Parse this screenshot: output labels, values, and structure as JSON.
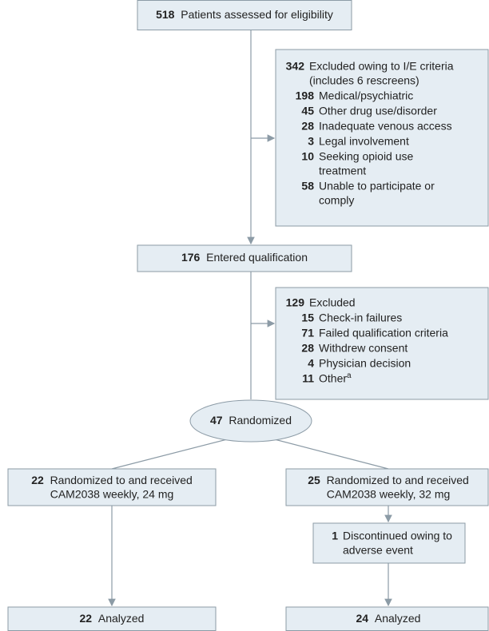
{
  "screening": {
    "count": 518,
    "label": "Patients assessed for eligibility"
  },
  "excluded_ie": {
    "count": 342,
    "label": "Excluded owing to I/E criteria",
    "note": "(includes 6 rescreens)",
    "reasons": [
      {
        "count": 198,
        "lines": [
          "Medical/psychiatric"
        ]
      },
      {
        "count": 45,
        "lines": [
          "Other drug use/disorder"
        ]
      },
      {
        "count": 28,
        "lines": [
          "Inadequate venous access"
        ]
      },
      {
        "count": 3,
        "lines": [
          "Legal involvement"
        ]
      },
      {
        "count": 10,
        "lines": [
          "Seeking opioid use",
          "treatment"
        ]
      },
      {
        "count": 58,
        "lines": [
          "Unable to participate or",
          "comply"
        ]
      }
    ]
  },
  "qualification": {
    "count": 176,
    "label": "Entered qualification"
  },
  "excluded_qual": {
    "count": 129,
    "label": "Excluded",
    "reasons": [
      {
        "count": 15,
        "lines": [
          "Check-in failures"
        ]
      },
      {
        "count": 71,
        "lines": [
          "Failed qualification criteria"
        ]
      },
      {
        "count": 28,
        "lines": [
          "Withdrew consent"
        ]
      },
      {
        "count": 4,
        "lines": [
          "Physician decision"
        ]
      },
      {
        "count": 11,
        "lines": [
          "Other"
        ],
        "footnote": "a"
      }
    ]
  },
  "randomized": {
    "count": 47,
    "label": "Randomized"
  },
  "arm_24": {
    "count": 22,
    "lines": [
      "Randomized to and received",
      "CAM2038 weekly, 24 mg"
    ]
  },
  "arm_32": {
    "count": 25,
    "lines": [
      "Randomized to and received",
      "CAM2038 weekly, 32 mg"
    ]
  },
  "discontinued": {
    "count": 1,
    "lines": [
      "Discontinued owing to",
      "adverse event"
    ]
  },
  "analyzed_24": {
    "count": 22,
    "label": "Analyzed"
  },
  "analyzed_32": {
    "count": 24,
    "label": "Analyzed"
  }
}
